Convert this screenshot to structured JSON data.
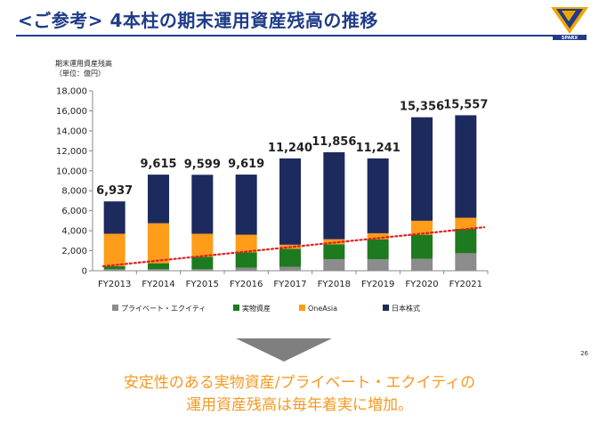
{
  "header": {
    "title": "<ご参考> 4本柱の期末運用資産残高の推移",
    "logo_text": "SPARX"
  },
  "page_number": "26",
  "unit_label": [
    "期末運用資産残高",
    "（単位：億円）"
  ],
  "message": {
    "line1": "安定性のある実物資産/プライベート・エクイティの",
    "line2": "運用資産残高は毎年着実に増加。"
  },
  "colors": {
    "title": "#1f3c88",
    "private_equity": "#8c8c8c",
    "real_assets": "#1e7a1e",
    "oneasia": "#ff9c1a",
    "japan_equity": "#1c2a5e",
    "trend": "#e02020",
    "message": "#f59a23"
  },
  "chart_data": {
    "type": "bar",
    "stacked": true,
    "categories": [
      "FY2013",
      "FY2014",
      "FY2015",
      "FY2016",
      "FY2017",
      "FY2018",
      "FY2019",
      "FY2020",
      "FY2021"
    ],
    "series": [
      {
        "name": "プライベート・エクイティ",
        "color": "#8c8c8c",
        "values": [
          150,
          150,
          150,
          300,
          400,
          1150,
          1150,
          1200,
          1750
        ]
      },
      {
        "name": "実物資産",
        "color": "#1e7a1e",
        "values": [
          300,
          600,
          1250,
          1550,
          1800,
          1500,
          2000,
          2400,
          2450
        ]
      },
      {
        "name": "OneAsia",
        "color": "#ff9c1a",
        "values": [
          3250,
          4000,
          2300,
          1750,
          400,
          500,
          600,
          1400,
          1100
        ]
      },
      {
        "name": "日本株式",
        "color": "#1c2a5e",
        "values": [
          3237,
          4865,
          5899,
          6019,
          8640,
          8706,
          7491,
          10356,
          10257
        ]
      }
    ],
    "totals": [
      "6,937",
      "9,615",
      "9,599",
      "9,619",
      "11,240",
      "11,856",
      "11,241",
      "15,356",
      "15,557"
    ],
    "total_values": [
      6937,
      9615,
      9599,
      9619,
      11240,
      11856,
      11241,
      15356,
      15557
    ],
    "trend_line": {
      "style": "dotted",
      "color": "#e02020",
      "from": 450,
      "to": 4350
    },
    "ylim": [
      0,
      18000
    ],
    "yticks": [
      "0",
      "2,000",
      "4,000",
      "6,000",
      "8,000",
      "10,000",
      "12,000",
      "14,000",
      "16,000",
      "18,000"
    ],
    "ytick_values": [
      0,
      2000,
      4000,
      6000,
      8000,
      10000,
      12000,
      14000,
      16000,
      18000
    ],
    "legend_position": "bottom",
    "grid": false
  }
}
